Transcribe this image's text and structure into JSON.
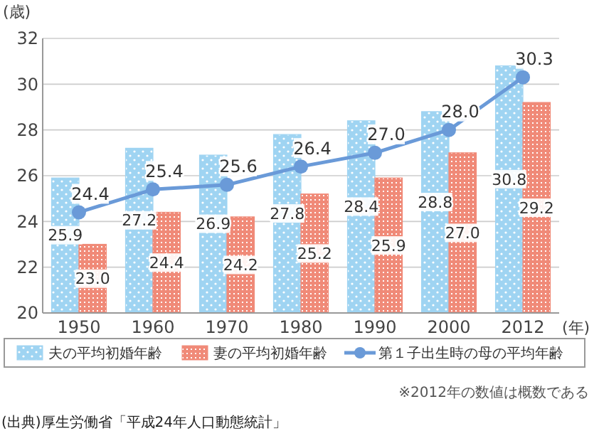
{
  "chart_data": {
    "type": "bar",
    "ylabel": "(歳)",
    "xlabel": "(年)",
    "categories": [
      "1950",
      "1960",
      "1970",
      "1980",
      "1990",
      "2000",
      "2012"
    ],
    "series": [
      {
        "name": "夫の平均初婚年齢",
        "color": "#9fd4f2",
        "values": [
          25.9,
          27.2,
          26.9,
          27.8,
          28.4,
          28.8,
          30.8
        ],
        "value_labels": [
          "25.9",
          "27.2",
          "26.9",
          "27.8",
          "28.4",
          "28.8",
          "30.8"
        ]
      },
      {
        "name": "妻の平均初婚年齢",
        "color": "#f08a78",
        "values": [
          23.0,
          24.4,
          24.2,
          25.2,
          25.9,
          27.0,
          29.2
        ],
        "value_labels": [
          "23.0",
          "24.4",
          "24.2",
          "25.2",
          "25.9",
          "27.0",
          "29.2"
        ]
      },
      {
        "name": "第１子出生時の母の平均年齢",
        "type": "line",
        "color": "#6a9ad8",
        "marker": "circle",
        "values": [
          24.4,
          25.4,
          25.6,
          26.4,
          27.0,
          28.0,
          30.3
        ],
        "value_labels": [
          "24.4",
          "25.4",
          "25.6",
          "26.4",
          "27.0",
          "28.0",
          "30.3"
        ]
      }
    ],
    "ylim": [
      20,
      32
    ],
    "yticks": [
      20,
      22,
      24,
      26,
      28,
      30,
      32
    ],
    "grid": "y",
    "legend": "bottom",
    "annotations": [
      "※2012年の数値は概数である",
      "(出典)厚生労働省「平成24年人口動態統計」"
    ]
  }
}
